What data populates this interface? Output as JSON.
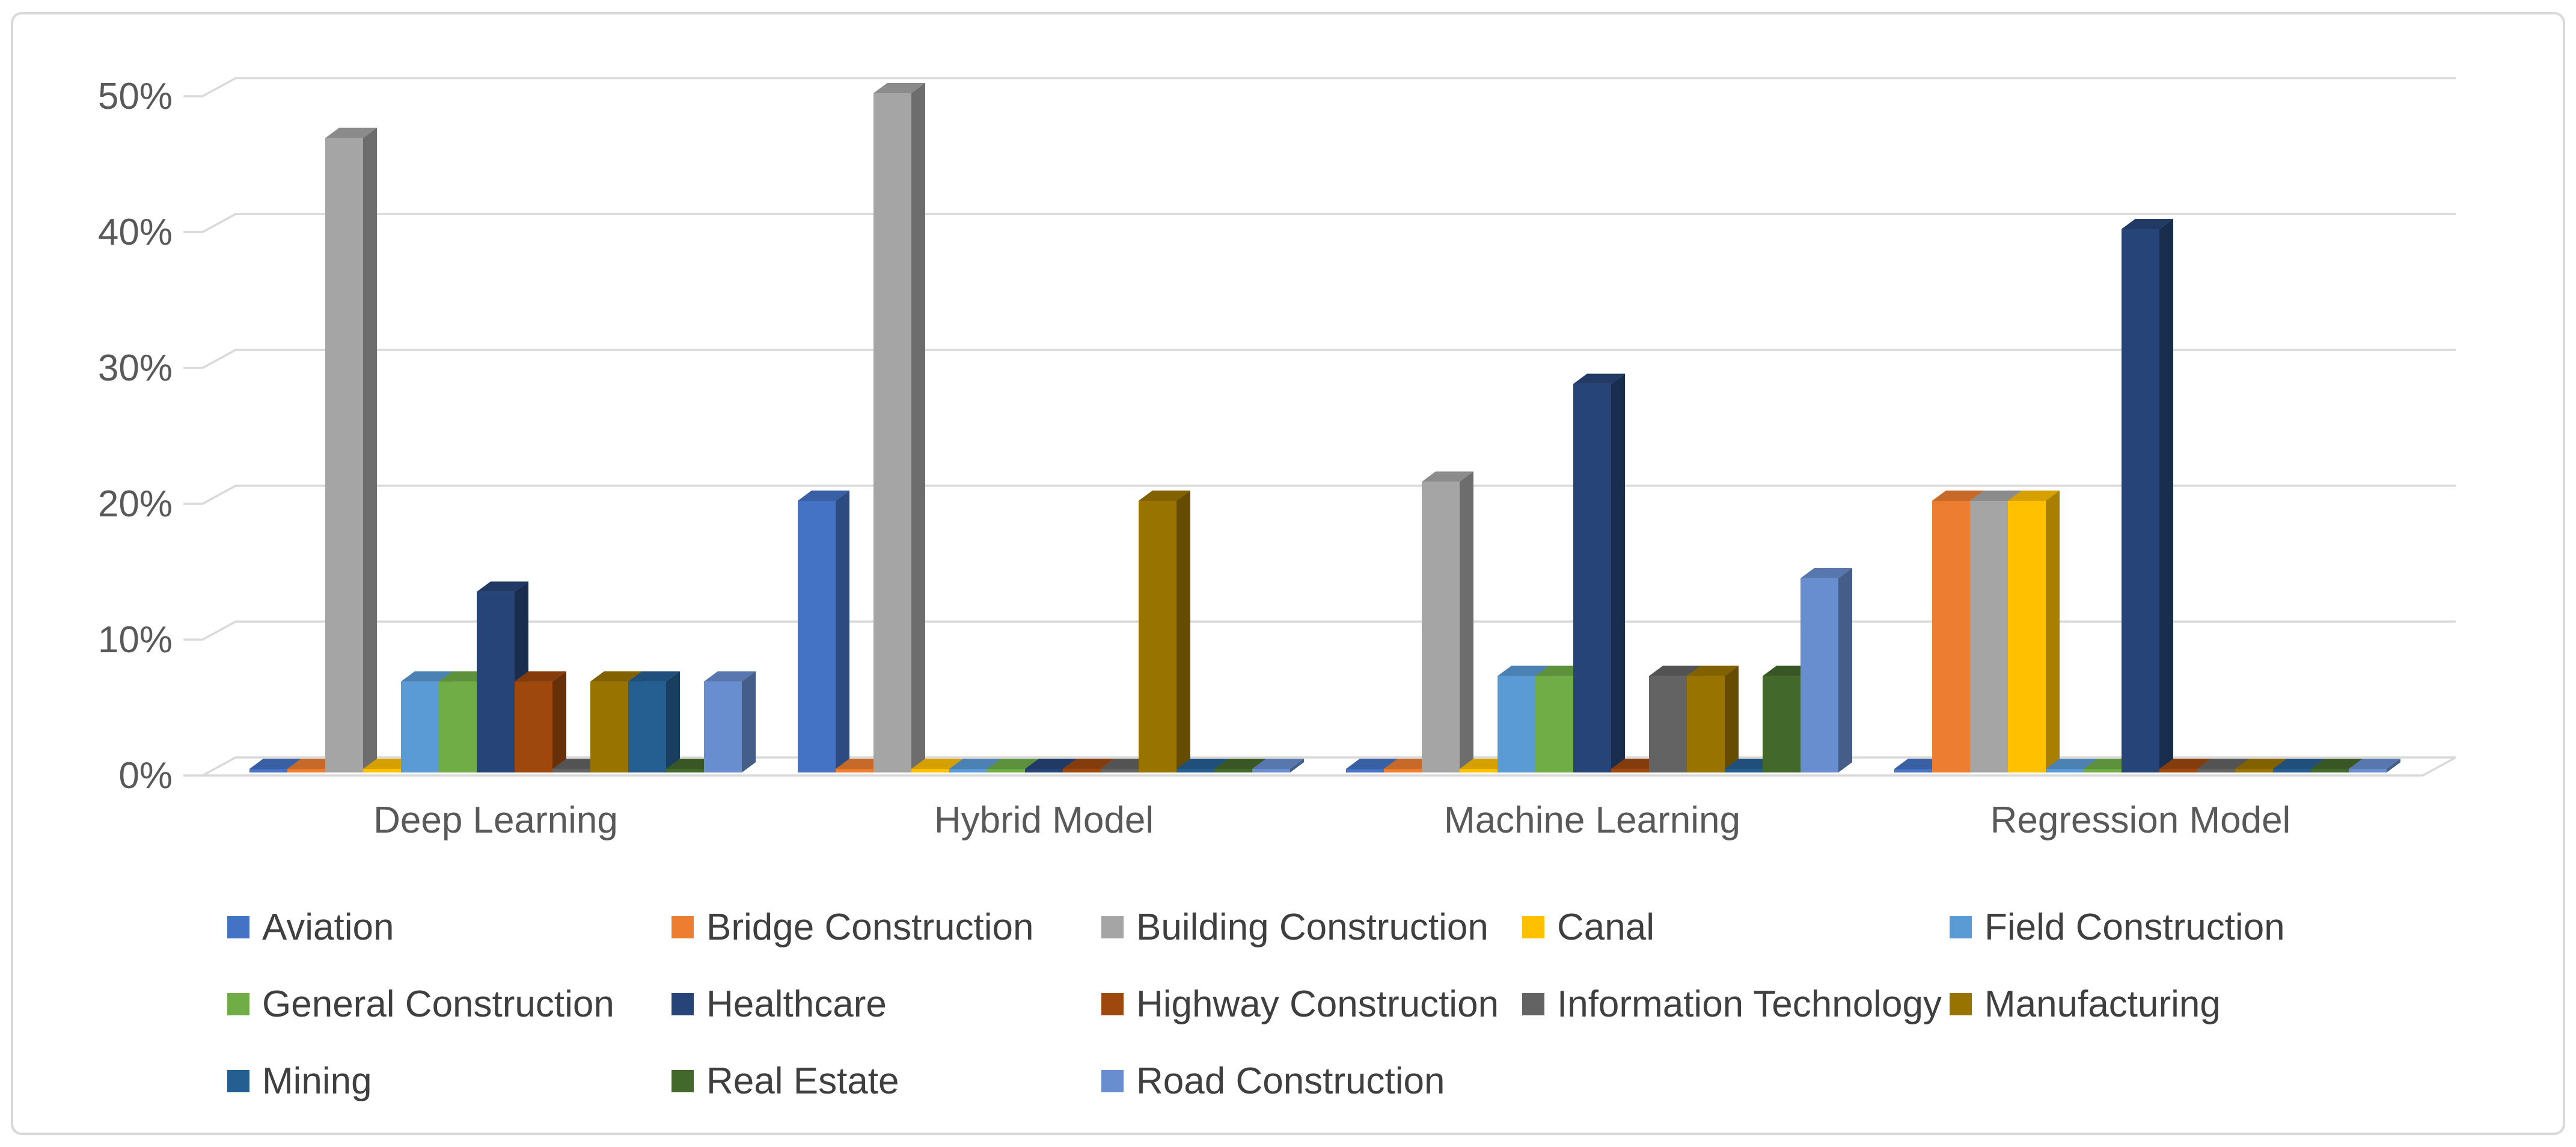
{
  "chart_data": {
    "type": "bar",
    "subtype": "3d-clustered-column",
    "title": "",
    "xlabel": "",
    "ylabel": "",
    "categories": [
      "Deep Learning",
      "Hybrid Model",
      "Machine Learning",
      "Regression Model"
    ],
    "series": [
      {
        "name": "Aviation",
        "color": "#4472C4",
        "values": [
          0,
          20,
          0,
          0
        ]
      },
      {
        "name": "Bridge Construction",
        "color": "#ED7D31",
        "values": [
          0,
          0,
          0,
          20
        ]
      },
      {
        "name": "Building Construction",
        "color": "#A5A5A5",
        "values": [
          46.7,
          50,
          21.4,
          20
        ]
      },
      {
        "name": "Canal",
        "color": "#FFC000",
        "values": [
          0,
          0,
          0,
          20
        ]
      },
      {
        "name": "Field Construction",
        "color": "#5B9BD5",
        "values": [
          6.7,
          0,
          7.1,
          0
        ]
      },
      {
        "name": "General Construction",
        "color": "#70AD47",
        "values": [
          6.7,
          0,
          7.1,
          0
        ]
      },
      {
        "name": "Healthcare",
        "color": "#264478",
        "values": [
          13.3,
          0,
          28.6,
          40
        ]
      },
      {
        "name": "Highway Construction",
        "color": "#9E480E",
        "values": [
          6.7,
          0,
          0,
          0
        ]
      },
      {
        "name": "Information Technology",
        "color": "#636363",
        "values": [
          0,
          0,
          7.1,
          0
        ]
      },
      {
        "name": "Manufacturing",
        "color": "#997300",
        "values": [
          6.7,
          20,
          7.1,
          0
        ]
      },
      {
        "name": "Mining",
        "color": "#255E91",
        "values": [
          6.7,
          0,
          0,
          0
        ]
      },
      {
        "name": "Real Estate",
        "color": "#43682B",
        "values": [
          0,
          0,
          7.1,
          0
        ]
      },
      {
        "name": "Road Construction",
        "color": "#698ED0",
        "values": [
          6.7,
          0,
          14.3,
          0
        ]
      }
    ],
    "y_ticks": [
      "0%",
      "10%",
      "20%",
      "30%",
      "40%",
      "50%"
    ],
    "ylim": [
      0,
      50
    ],
    "grid": true,
    "legend_position": "bottom"
  },
  "colors": {
    "gridline": "#D9D9D9",
    "axis_text": "#595959",
    "legend_text": "#3F3F3F",
    "frame_border": "#D9D9D9",
    "background": "#FFFFFF"
  }
}
